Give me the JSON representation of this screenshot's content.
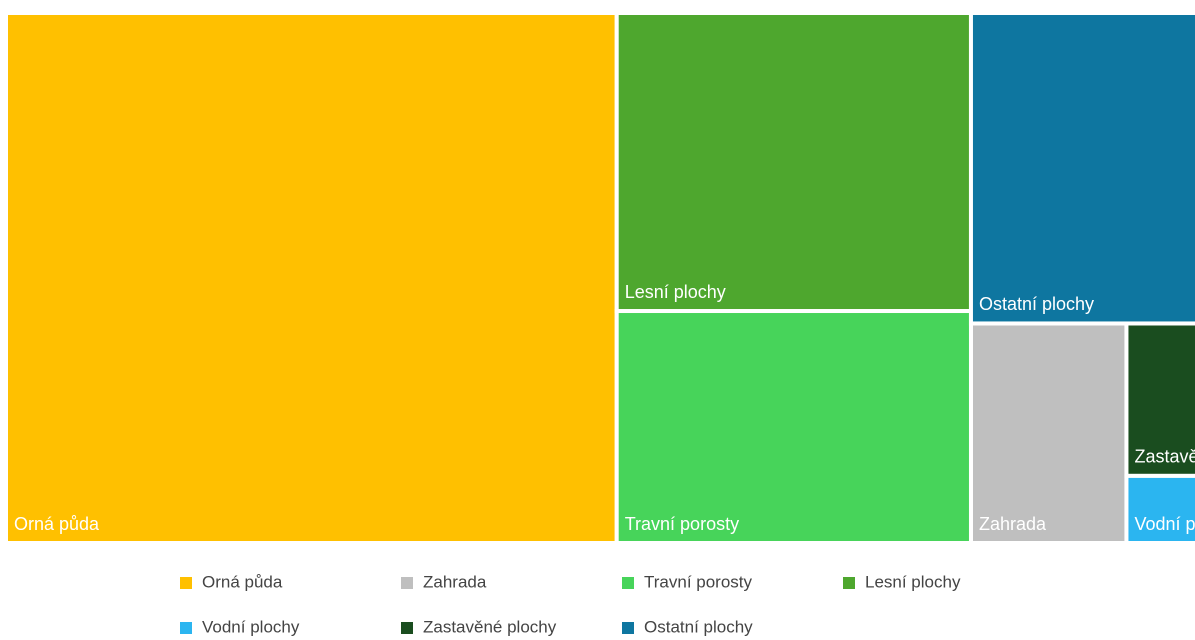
{
  "chart_data": {
    "type": "treemap",
    "categories": [
      "Orná půda",
      "Zahrada",
      "Travní porosty",
      "Lesní plochy",
      "Vodní plochy",
      "Zastavěné plochy",
      "Ostatní plochy"
    ],
    "values": [
      51.2,
      5.4,
      13.0,
      16.7,
      0.75,
      1.7,
      11.1
    ],
    "colors": [
      "#FFC000",
      "#BFBFBF",
      "#47D45A",
      "#4EA72E",
      "#2BB5F0",
      "#1A4D1F",
      "#0E76A0"
    ],
    "legend": "bottom"
  }
}
